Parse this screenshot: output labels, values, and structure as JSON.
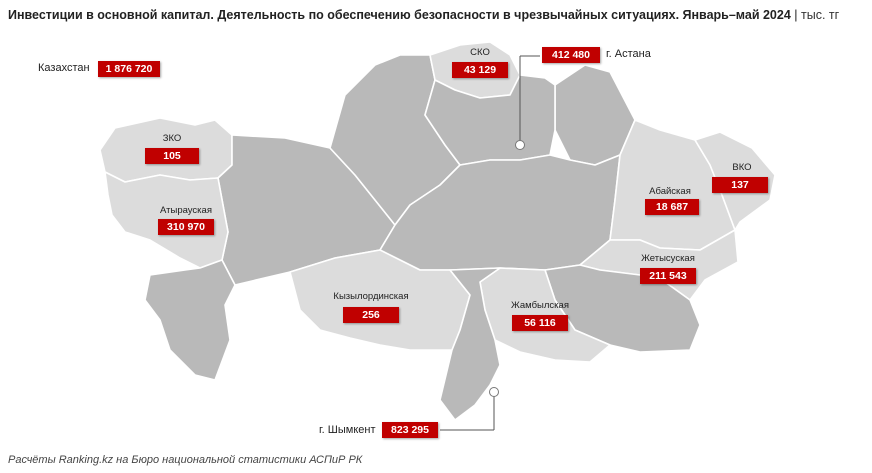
{
  "title": {
    "main": "Инвестиции в основной капитал. Деятельность по обеспечению безопасности в чрезвычайных ситуациях. Январь–май 2024",
    "separator": "|",
    "unit": "тыс. тг"
  },
  "total": {
    "label": "Казахстан",
    "value": "1 876 720"
  },
  "regions": {
    "sko": {
      "name": "СКО",
      "value": "43 129"
    },
    "astana": {
      "name": "г. Астана",
      "value": "412 480"
    },
    "zko": {
      "name": "ЗКО",
      "value": "105"
    },
    "atyrau": {
      "name": "Атырауская",
      "value": "310 970"
    },
    "vko": {
      "name": "ВКО",
      "value": "137"
    },
    "abai": {
      "name": "Абайская",
      "value": "18 687"
    },
    "zhetysu": {
      "name": "Жетысуская",
      "value": "211 543"
    },
    "kyzylorda": {
      "name": "Кызылординская",
      "value": "256"
    },
    "zhambyl": {
      "name": "Жамбылская",
      "value": "56 116"
    },
    "shymkent": {
      "name": "г. Шымкент",
      "value": "823 295"
    }
  },
  "colors": {
    "value_box": "#c00000",
    "region_highlight": "#dcdcdc",
    "region_default": "#b9b9b9"
  },
  "footer": "Расчёты Ranking.kz на Бюро национальной статистики АСПиР РК"
}
